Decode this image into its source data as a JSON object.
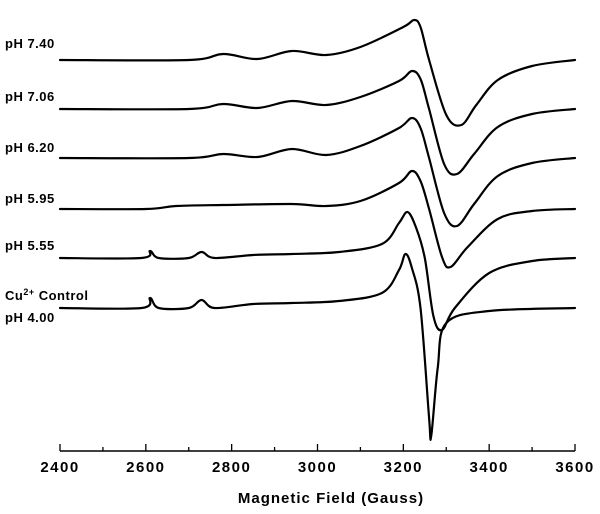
{
  "chart_data": {
    "type": "line",
    "title": "",
    "xlabel": "Magnetic Field (Gauss)",
    "ylabel": "",
    "xlim": [
      2400,
      3600
    ],
    "x_ticks": [
      2400,
      2600,
      2800,
      3000,
      3200,
      3400,
      3600
    ],
    "grid": false,
    "legend": "labels at left of each trace",
    "series": [
      {
        "name": "pH  7.40",
        "baseline": 0,
        "turn_points": [
          [
            2400,
            0
          ],
          [
            2700,
            0
          ],
          [
            2780,
            6
          ],
          [
            2860,
            1
          ],
          [
            2940,
            9
          ],
          [
            3020,
            5
          ],
          [
            3100,
            13
          ],
          [
            3200,
            33
          ],
          [
            3225,
            40
          ],
          [
            3240,
            33
          ],
          [
            3260,
            0
          ],
          [
            3300,
            -55
          ],
          [
            3335,
            -65
          ],
          [
            3370,
            -45
          ],
          [
            3420,
            -20
          ],
          [
            3500,
            -6
          ],
          [
            3600,
            0
          ]
        ]
      },
      {
        "name": "pH  7.06",
        "baseline": 0,
        "turn_points": [
          [
            2400,
            0
          ],
          [
            2700,
            0
          ],
          [
            2780,
            5
          ],
          [
            2860,
            1
          ],
          [
            2940,
            8
          ],
          [
            3020,
            4
          ],
          [
            3100,
            12
          ],
          [
            3190,
            28
          ],
          [
            3220,
            38
          ],
          [
            3240,
            30
          ],
          [
            3260,
            0
          ],
          [
            3295,
            -55
          ],
          [
            3325,
            -65
          ],
          [
            3365,
            -45
          ],
          [
            3420,
            -18
          ],
          [
            3500,
            -5
          ],
          [
            3600,
            0
          ]
        ]
      },
      {
        "name": "pH  6.20",
        "baseline": 0,
        "turn_points": [
          [
            2400,
            0
          ],
          [
            2700,
            0
          ],
          [
            2780,
            4
          ],
          [
            2860,
            1
          ],
          [
            2940,
            9
          ],
          [
            3020,
            3
          ],
          [
            3100,
            12
          ],
          [
            3190,
            30
          ],
          [
            3220,
            40
          ],
          [
            3240,
            30
          ],
          [
            3260,
            0
          ],
          [
            3295,
            -55
          ],
          [
            3325,
            -68
          ],
          [
            3365,
            -46
          ],
          [
            3420,
            -18
          ],
          [
            3500,
            -5
          ],
          [
            3600,
            0
          ]
        ]
      },
      {
        "name": "pH  5.95",
        "baseline": 0,
        "turn_points": [
          [
            2400,
            0
          ],
          [
            2600,
            0
          ],
          [
            2670,
            3
          ],
          [
            2780,
            4
          ],
          [
            2940,
            5
          ],
          [
            3020,
            3
          ],
          [
            3100,
            8
          ],
          [
            3190,
            26
          ],
          [
            3220,
            38
          ],
          [
            3240,
            28
          ],
          [
            3260,
            0
          ],
          [
            3290,
            -48
          ],
          [
            3310,
            -58
          ],
          [
            3350,
            -38
          ],
          [
            3420,
            -10
          ],
          [
            3500,
            -2
          ],
          [
            3600,
            0
          ]
        ]
      },
      {
        "name": "pH  5.55",
        "baseline": 0,
        "turn_points": [
          [
            2400,
            0
          ],
          [
            2590,
            0
          ],
          [
            2610,
            7
          ],
          [
            2630,
            0
          ],
          [
            2700,
            0
          ],
          [
            2730,
            6
          ],
          [
            2760,
            0
          ],
          [
            2850,
            3
          ],
          [
            2940,
            4
          ],
          [
            3050,
            6
          ],
          [
            3150,
            14
          ],
          [
            3190,
            35
          ],
          [
            3210,
            46
          ],
          [
            3230,
            30
          ],
          [
            3250,
            0
          ],
          [
            3270,
            -58
          ],
          [
            3290,
            -72
          ],
          [
            3320,
            -50
          ],
          [
            3400,
            -15
          ],
          [
            3500,
            -3
          ],
          [
            3600,
            0
          ]
        ]
      },
      {
        "name": "Cu2+ Control pH 4.00",
        "baseline": 0,
        "turn_points": [
          [
            2400,
            0
          ],
          [
            2590,
            0
          ],
          [
            2610,
            10
          ],
          [
            2630,
            0
          ],
          [
            2700,
            0
          ],
          [
            2730,
            8
          ],
          [
            2760,
            0
          ],
          [
            2850,
            4
          ],
          [
            2940,
            5
          ],
          [
            3050,
            7
          ],
          [
            3150,
            15
          ],
          [
            3190,
            38
          ],
          [
            3205,
            54
          ],
          [
            3220,
            40
          ],
          [
            3240,
            0
          ],
          [
            3260,
            -110
          ],
          [
            3265,
            -128
          ],
          [
            3280,
            -60
          ],
          [
            3300,
            -15
          ],
          [
            3400,
            -3
          ],
          [
            3600,
            0
          ]
        ]
      }
    ]
  }
}
